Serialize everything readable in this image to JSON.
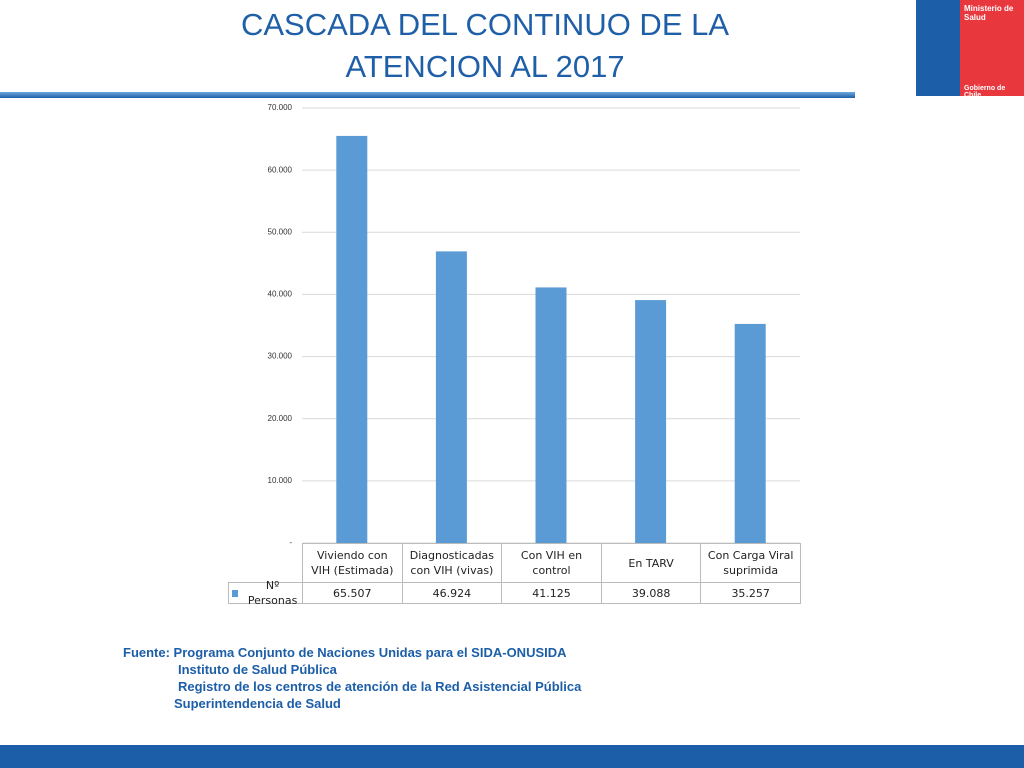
{
  "slide": {
    "title": "CASCADA DEL CONTINUO DE LA ATENCION AL 2017",
    "logo": {
      "ministry": "Ministerio de Salud",
      "government": "Gobierno de Chile"
    },
    "source": [
      "Fuente: Programa Conjunto de Naciones Unidas para el SIDA-ONUSIDA",
      "Instituto de Salud Pública",
      "Registro de los centros de atención de la Red Asistencial Pública",
      "Superintendencia de Salud"
    ]
  },
  "chart_data": {
    "type": "bar",
    "categories": [
      "Viviendo con VIH (Estimada)",
      "Diagnosticadas con VIH (vivas)",
      "Con VIH en control",
      "En TARV",
      "Con Carga Viral suprimida"
    ],
    "series": [
      {
        "name": "Nº Personas",
        "color": "#5b9bd5",
        "values": [
          65507,
          46924,
          41125,
          39088,
          35257
        ],
        "value_labels": [
          "65.507",
          "46.924",
          "41.125",
          "39.088",
          "35.257"
        ]
      }
    ],
    "ylim": [
      0,
      70000
    ],
    "yticks": [
      {
        "value": 0,
        "label": "-"
      },
      {
        "value": 10000,
        "label": "10.000"
      },
      {
        "value": 20000,
        "label": "20.000"
      },
      {
        "value": 30000,
        "label": "30.000"
      },
      {
        "value": 40000,
        "label": "40.000"
      },
      {
        "value": 50000,
        "label": "50.000"
      },
      {
        "value": 60000,
        "label": "60.000"
      },
      {
        "value": 70000,
        "label": "70.000"
      }
    ],
    "grid": true
  }
}
